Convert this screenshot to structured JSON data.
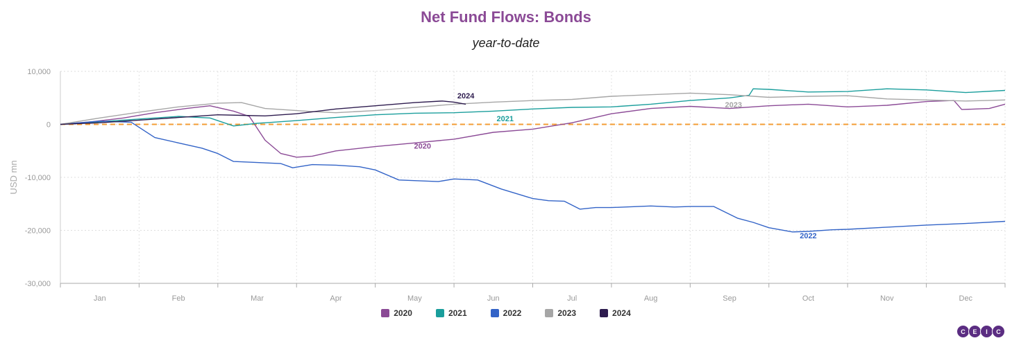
{
  "chart_data": {
    "type": "line",
    "title": "Net Fund Flows: Bonds",
    "subtitle": "year-to-date",
    "ylabel": "USD mn",
    "xlabel": "",
    "ylim": [
      -30000,
      10000
    ],
    "yticks": [
      "10,000",
      "0",
      "-10,000",
      "-20,000",
      "-30,000"
    ],
    "ytick_values": [
      10000,
      0,
      -10000,
      -20000,
      -30000
    ],
    "xlim": [
      0,
      12
    ],
    "months": [
      "Jan",
      "Feb",
      "Mar",
      "Apr",
      "May",
      "Jun",
      "Jul",
      "Aug",
      "Sep",
      "Oct",
      "Nov",
      "Dec"
    ],
    "grid": true,
    "legend_position": "bottom",
    "zero_line_color": "#f39c34",
    "series": [
      {
        "name": "2020",
        "color": "#8b4a96",
        "label_at": [
          4.6,
          -4600
        ],
        "x": [
          0,
          0.4,
          0.8,
          1.2,
          1.6,
          1.9,
          2.2,
          2.4,
          2.6,
          2.8,
          3.0,
          3.2,
          3.5,
          4.0,
          4.5,
          5.0,
          5.5,
          6.0,
          6.5,
          7.0,
          7.5,
          8.0,
          8.5,
          9.0,
          9.5,
          10.0,
          10.5,
          11.0,
          11.35,
          11.45,
          11.8,
          12.0
        ],
        "y": [
          0,
          500,
          1200,
          2200,
          3000,
          3500,
          2500,
          1500,
          -3000,
          -5500,
          -6200,
          -6000,
          -5000,
          -4200,
          -3500,
          -2800,
          -1500,
          -900,
          300,
          2000,
          3000,
          3400,
          3000,
          3500,
          3800,
          3300,
          3600,
          4300,
          4500,
          2800,
          3000,
          3800
        ]
      },
      {
        "name": "2021",
        "color": "#1a9e9c",
        "label_at": [
          5.65,
          600
        ],
        "x": [
          0,
          0.5,
          1.0,
          1.5,
          1.9,
          2.2,
          2.5,
          3.0,
          3.5,
          4.0,
          4.5,
          5.0,
          5.5,
          6.0,
          6.5,
          7.0,
          7.5,
          8.0,
          8.5,
          8.75,
          8.8,
          9.0,
          9.5,
          10.0,
          10.5,
          11.0,
          11.5,
          12.0
        ],
        "y": [
          0,
          500,
          1000,
          1500,
          1200,
          -300,
          200,
          700,
          1300,
          1800,
          2100,
          2200,
          2500,
          2900,
          3200,
          3300,
          3800,
          4500,
          5000,
          5500,
          6700,
          6600,
          6100,
          6200,
          6700,
          6500,
          6000,
          6400
        ]
      },
      {
        "name": "2022",
        "color": "#3263c7",
        "label_at": [
          9.5,
          -21500
        ],
        "x": [
          0,
          0.5,
          0.9,
          1.2,
          1.5,
          1.8,
          2.0,
          2.2,
          2.5,
          2.8,
          2.95,
          3.2,
          3.5,
          3.8,
          4.0,
          4.3,
          4.8,
          5.0,
          5.3,
          5.6,
          6.0,
          6.2,
          6.4,
          6.6,
          6.8,
          7.0,
          7.5,
          7.8,
          8.0,
          8.3,
          8.6,
          8.8,
          9.0,
          9.3,
          9.5,
          9.8,
          10.0,
          10.5,
          11.0,
          11.5,
          12.0
        ],
        "y": [
          0,
          600,
          400,
          -2500,
          -3500,
          -4500,
          -5500,
          -7000,
          -7200,
          -7400,
          -8200,
          -7600,
          -7700,
          -8000,
          -8600,
          -10500,
          -10800,
          -10300,
          -10500,
          -12200,
          -14000,
          -14400,
          -14500,
          -16000,
          -15700,
          -15700,
          -15400,
          -15600,
          -15500,
          -15500,
          -17700,
          -18500,
          -19500,
          -20300,
          -20200,
          -19900,
          -19800,
          -19400,
          -19000,
          -18700,
          -18300
        ]
      },
      {
        "name": "2023",
        "color": "#a6a6a6",
        "label_at": [
          8.55,
          3200
        ],
        "x": [
          0,
          0.5,
          1.0,
          1.5,
          2.0,
          2.3,
          2.6,
          2.9,
          3.2,
          3.5,
          4.0,
          4.5,
          5.0,
          5.5,
          6.0,
          6.5,
          7.0,
          7.5,
          8.0,
          8.5,
          9.0,
          9.5,
          10.0,
          10.5,
          11.0,
          11.5,
          12.0
        ],
        "y": [
          0,
          1200,
          2300,
          3300,
          4000,
          4100,
          3000,
          2700,
          2400,
          2200,
          2600,
          3200,
          3800,
          4200,
          4500,
          4700,
          5300,
          5600,
          5900,
          5600,
          5100,
          5300,
          5400,
          4800,
          4600,
          4400,
          4600
        ]
      },
      {
        "name": "2024",
        "color": "#2d1b4e",
        "label_at": [
          5.15,
          4900
        ],
        "x": [
          0,
          0.5,
          1.0,
          1.5,
          2.0,
          2.3,
          2.6,
          3.0,
          3.5,
          4.0,
          4.5,
          4.85,
          5.0,
          5.15
        ],
        "y": [
          0,
          300,
          800,
          1300,
          1800,
          1700,
          1600,
          2000,
          2900,
          3500,
          4100,
          4400,
          4200,
          3800
        ]
      }
    ]
  },
  "logo": {
    "letters": [
      "C",
      "E",
      "I",
      "C"
    ],
    "color": "#5b2d82"
  }
}
